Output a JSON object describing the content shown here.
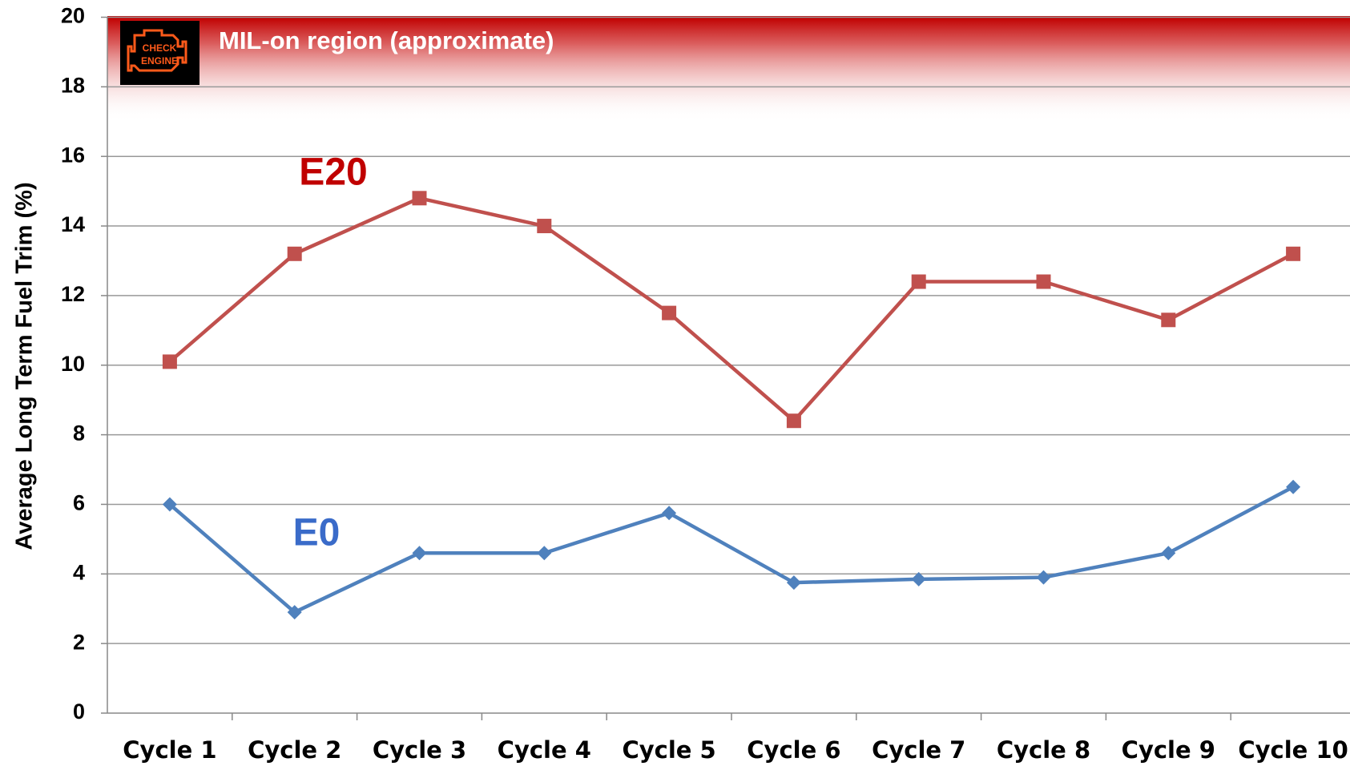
{
  "chart_data": {
    "type": "line",
    "y_label": "Average Long Term Fuel Trim (%)",
    "categories": [
      "Cycle 1",
      "Cycle 2",
      "Cycle 3",
      "Cycle 4",
      "Cycle 5",
      "Cycle 6",
      "Cycle 7",
      "Cycle 8",
      "Cycle 9",
      "Cycle 10"
    ],
    "series": [
      {
        "name": "E20",
        "color": "#c0504d",
        "label_color": "#c00000",
        "marker": "square",
        "values": [
          10.1,
          13.2,
          14.8,
          14.0,
          11.5,
          8.4,
          12.4,
          12.4,
          11.3,
          13.2
        ]
      },
      {
        "name": "E0",
        "color": "#4f81bd",
        "label_color": "#3a6bc9",
        "marker": "diamond",
        "values": [
          6.0,
          2.9,
          4.6,
          4.6,
          5.75,
          3.75,
          3.85,
          3.9,
          4.6,
          6.5
        ]
      }
    ],
    "ylim": [
      0,
      20
    ],
    "yticks": [
      0,
      2,
      4,
      6,
      8,
      10,
      12,
      14,
      16,
      18,
      20
    ],
    "grid": true,
    "band": {
      "label": "MIL-on region  (approximate)",
      "from": 17,
      "to": 20,
      "color": "#c00000"
    },
    "icon": {
      "line1": "CHECK",
      "line2": "ENGINE"
    }
  }
}
